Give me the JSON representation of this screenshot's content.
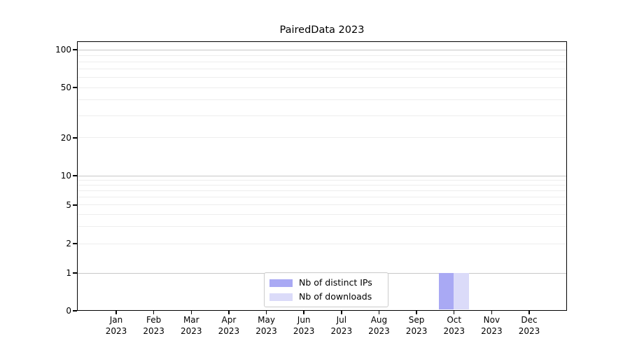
{
  "chart_data": {
    "type": "bar",
    "title": "PairedData 2023",
    "categories": [
      "Jan",
      "Feb",
      "Mar",
      "Apr",
      "May",
      "Jun",
      "Jul",
      "Aug",
      "Sep",
      "Oct",
      "Nov",
      "Dec"
    ],
    "category_subline": "2023",
    "series": [
      {
        "name": "Nb of distinct IPs",
        "color": "#a9a9f4",
        "values": [
          0,
          0,
          0,
          0,
          0,
          0,
          0,
          0,
          0,
          1,
          0,
          0
        ]
      },
      {
        "name": "Nb of downloads",
        "color": "#dbdbf9",
        "values": [
          0,
          0,
          0,
          0,
          0,
          0,
          0,
          0,
          0,
          1,
          0,
          0
        ]
      }
    ],
    "xlabel": "",
    "ylabel": "",
    "yscale": "symlog",
    "yticks": [
      0,
      1,
      2,
      5,
      10,
      20,
      50,
      100
    ],
    "minor_gridline_values": [
      2,
      3,
      4,
      5,
      6,
      7,
      8,
      9,
      20,
      30,
      40,
      50,
      60,
      70,
      80,
      90
    ],
    "major_gridline_values": [
      1,
      10,
      100
    ],
    "ylim": [
      0,
      116
    ],
    "grid": "horizontal",
    "legend_position": "lower center",
    "colors": {
      "major_grid": "#c7c7c7",
      "minor_grid": "#ededed",
      "axis": "#000000",
      "background": "#ffffff"
    }
  }
}
